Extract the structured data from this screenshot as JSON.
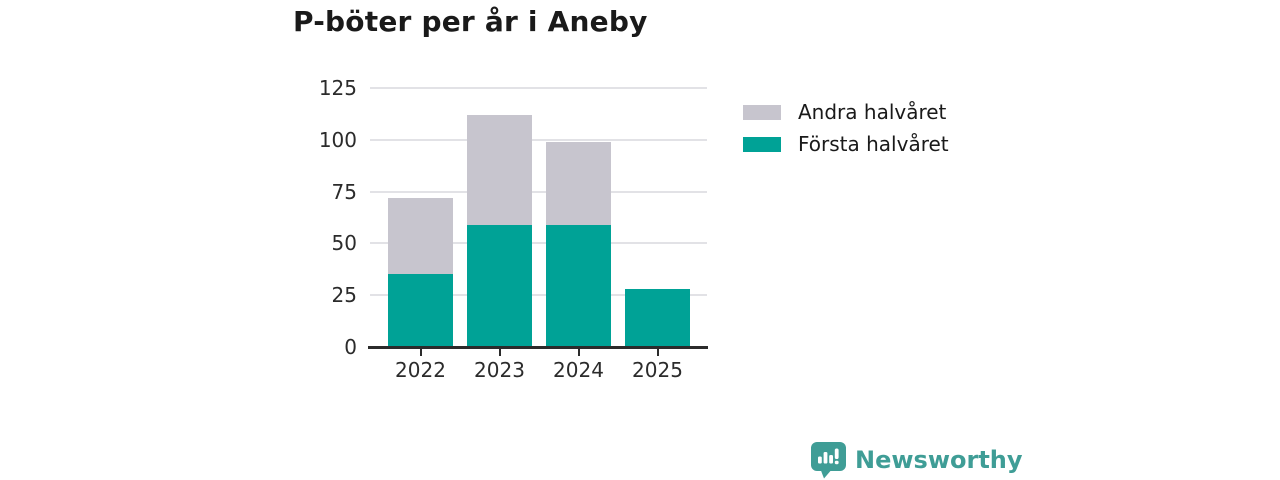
{
  "title": "P-böter per år i Aneby",
  "chart_data": {
    "type": "bar",
    "stacked": true,
    "title": "P-böter per år i Aneby",
    "categories": [
      "2022",
      "2023",
      "2024",
      "2025"
    ],
    "series": [
      {
        "name": "Första halvåret",
        "color": "#00A296",
        "values": [
          35,
          59,
          59,
          28
        ]
      },
      {
        "name": "Andra halvåret",
        "color": "#C7C5CE",
        "values": [
          37,
          53,
          40,
          0
        ]
      }
    ],
    "totals": [
      72,
      112,
      99,
      28
    ],
    "xlabel": "",
    "ylabel": "",
    "ylim": [
      0,
      125
    ],
    "yticks": [
      0,
      25,
      50,
      75,
      100,
      125
    ],
    "grid": true,
    "legend_position": "right"
  },
  "legend": [
    {
      "label": "Andra halvåret",
      "color": "#C7C5CE"
    },
    {
      "label": "Första halvåret",
      "color": "#00A296"
    }
  ],
  "branding": {
    "logo_text": "Newsworthy",
    "logo_color": "#3f9d96"
  },
  "colors": {
    "first_half": "#00A296",
    "second_half": "#C7C5CE",
    "axis": "#2b2b2b",
    "gridline": "#e2e2e6",
    "background": "#ffffff"
  }
}
